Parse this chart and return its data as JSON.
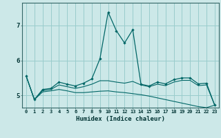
{
  "xlabel": "Humidex (Indice chaleur)",
  "background_color": "#cce8e8",
  "grid_color": "#99cccc",
  "line_color": "#006666",
  "x_values": [
    0,
    1,
    2,
    3,
    4,
    5,
    6,
    7,
    8,
    9,
    10,
    11,
    12,
    13,
    14,
    15,
    16,
    17,
    18,
    19,
    20,
    21,
    22,
    23
  ],
  "y_main": [
    5.55,
    4.88,
    5.17,
    5.2,
    5.38,
    5.32,
    5.27,
    5.35,
    5.47,
    6.05,
    7.38,
    6.85,
    6.5,
    6.88,
    5.32,
    5.27,
    5.38,
    5.33,
    5.45,
    5.5,
    5.5,
    5.33,
    5.35,
    4.72
  ],
  "y_flat": [
    5.55,
    4.88,
    5.1,
    5.13,
    5.17,
    5.13,
    5.08,
    5.08,
    5.1,
    5.12,
    5.13,
    5.1,
    5.08,
    5.05,
    5.02,
    4.98,
    4.93,
    4.88,
    4.83,
    4.78,
    4.73,
    4.68,
    4.65,
    4.72
  ],
  "y_mid": [
    5.55,
    4.88,
    5.14,
    5.17,
    5.3,
    5.25,
    5.2,
    5.25,
    5.32,
    5.42,
    5.42,
    5.38,
    5.35,
    5.4,
    5.3,
    5.25,
    5.32,
    5.28,
    5.38,
    5.43,
    5.43,
    5.28,
    5.3,
    4.72
  ],
  "xlim": [
    -0.5,
    23.5
  ],
  "ylim": [
    4.65,
    7.65
  ],
  "yticks": [
    5,
    6,
    7
  ],
  "xticks": [
    0,
    1,
    2,
    3,
    4,
    5,
    6,
    7,
    8,
    9,
    10,
    11,
    12,
    13,
    14,
    15,
    16,
    17,
    18,
    19,
    20,
    21,
    22,
    23
  ]
}
